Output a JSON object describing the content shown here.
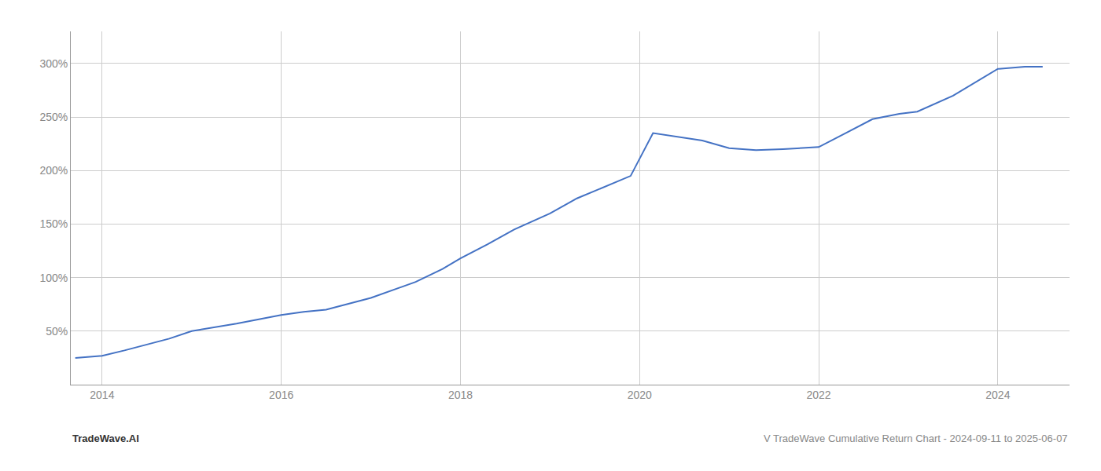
{
  "chart_data": {
    "type": "line",
    "title": "V TradeWave Cumulative Return Chart - 2024-09-11 to 2025-06-07",
    "annotations": [
      "TradeWave.AI"
    ],
    "x": [
      2013.7,
      2014.0,
      2014.25,
      2014.75,
      2015.0,
      2015.5,
      2016.0,
      2016.25,
      2016.5,
      2017.0,
      2017.5,
      2017.8,
      2018.0,
      2018.3,
      2018.6,
      2019.0,
      2019.3,
      2019.7,
      2019.9,
      2020.15,
      2020.3,
      2020.7,
      2021.0,
      2021.3,
      2021.6,
      2022.0,
      2022.3,
      2022.6,
      2022.9,
      2023.1,
      2023.5,
      2023.8,
      2024.0,
      2024.3,
      2024.5
    ],
    "values": [
      25,
      27,
      32,
      43,
      50,
      57,
      65,
      68,
      70,
      81,
      96,
      108,
      118,
      131,
      145,
      160,
      174,
      188,
      195,
      235,
      233,
      228,
      221,
      219,
      220,
      222,
      235,
      248,
      253,
      255,
      270,
      285,
      295,
      297,
      297
    ],
    "color": "#4472c4",
    "xlim": [
      2013.65,
      2024.8
    ],
    "ylim": [
      0,
      330
    ],
    "xticks": [
      2014,
      2016,
      2018,
      2020,
      2022,
      2024
    ],
    "yticks": [
      {
        "value": 50,
        "label": "50%"
      },
      {
        "value": 100,
        "label": "100%"
      },
      {
        "value": 150,
        "label": "150%"
      },
      {
        "value": 200,
        "label": "200%"
      },
      {
        "value": 250,
        "label": "250%"
      },
      {
        "value": 300,
        "label": "300%"
      }
    ],
    "grid": true
  }
}
